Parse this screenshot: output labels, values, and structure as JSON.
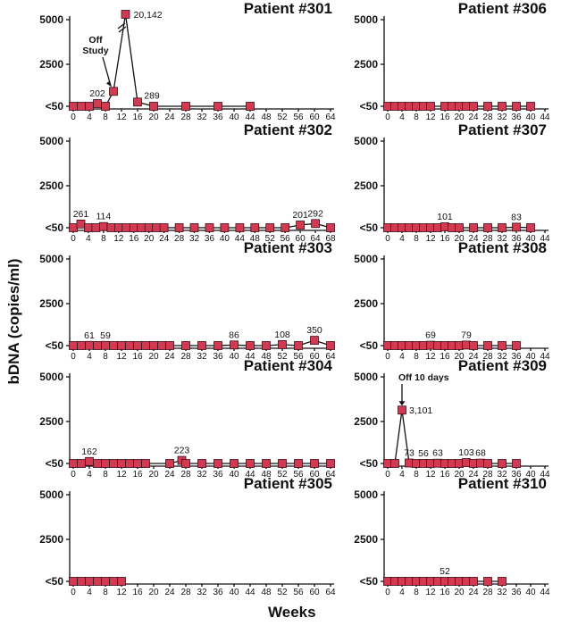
{
  "figure": {
    "ylabel": "bDNA (copies/ml)",
    "xlabel": "Weeks"
  },
  "chart_data": [
    {
      "type": "line",
      "title": "Patient #301",
      "y_tick_labels": [
        "5000",
        "2500",
        "<50"
      ],
      "x_tick_labels": [
        "0",
        "4",
        "8",
        "12",
        "16",
        "20",
        "24",
        "28",
        "32",
        "36",
        "40",
        "44",
        "48",
        "52",
        "56",
        "60",
        "64"
      ],
      "xlim": [
        0,
        64
      ],
      "ylim": [
        50,
        5000
      ],
      "y_axis_break": true,
      "points": [
        [
          0,
          50
        ],
        [
          2,
          50
        ],
        [
          4,
          50
        ],
        [
          6,
          202
        ],
        [
          8,
          50
        ],
        [
          10,
          900
        ],
        [
          13,
          20142
        ],
        [
          16,
          289
        ],
        [
          20,
          50
        ],
        [
          28,
          50
        ],
        [
          36,
          50
        ],
        [
          44,
          50
        ]
      ],
      "data_labels": [
        {
          "x": 6,
          "text": "202"
        },
        {
          "x": 13,
          "text": "20,142"
        },
        {
          "x": 16,
          "text": "289"
        }
      ],
      "annotations": [
        {
          "x": 10,
          "lines": [
            "Off",
            "Study"
          ]
        }
      ]
    },
    {
      "type": "line",
      "title": "Patient #306",
      "y_tick_labels": [
        "5000",
        "2500",
        "<50"
      ],
      "x_tick_labels": [
        "0",
        "4",
        "8",
        "12",
        "16",
        "20",
        "24",
        "28",
        "32",
        "36",
        "40",
        "44"
      ],
      "xlim": [
        0,
        44
      ],
      "ylim": [
        50,
        5000
      ],
      "points": [
        [
          0,
          50
        ],
        [
          2,
          50
        ],
        [
          4,
          50
        ],
        [
          6,
          50
        ],
        [
          8,
          50
        ],
        [
          10,
          50
        ],
        [
          12,
          50
        ],
        [
          16,
          50
        ],
        [
          18,
          50
        ],
        [
          20,
          50
        ],
        [
          22,
          50
        ],
        [
          24,
          50
        ],
        [
          28,
          50
        ],
        [
          32,
          50
        ],
        [
          36,
          50
        ],
        [
          40,
          50
        ]
      ],
      "data_labels": []
    },
    {
      "type": "line",
      "title": "Patient #302",
      "y_tick_labels": [
        "5000",
        "2500",
        "<50"
      ],
      "x_tick_labels": [
        "0",
        "4",
        "8",
        "12",
        "16",
        "20",
        "24",
        "28",
        "32",
        "36",
        "40",
        "44",
        "48",
        "52",
        "56",
        "60",
        "64",
        "68"
      ],
      "xlim": [
        0,
        68
      ],
      "ylim": [
        50,
        5000
      ],
      "points": [
        [
          0,
          50
        ],
        [
          2,
          261
        ],
        [
          4,
          50
        ],
        [
          6,
          50
        ],
        [
          8,
          114
        ],
        [
          10,
          50
        ],
        [
          12,
          50
        ],
        [
          14,
          50
        ],
        [
          16,
          50
        ],
        [
          18,
          50
        ],
        [
          20,
          50
        ],
        [
          22,
          50
        ],
        [
          24,
          50
        ],
        [
          28,
          50
        ],
        [
          32,
          50
        ],
        [
          36,
          50
        ],
        [
          40,
          50
        ],
        [
          44,
          50
        ],
        [
          48,
          50
        ],
        [
          52,
          50
        ],
        [
          56,
          50
        ],
        [
          60,
          201
        ],
        [
          64,
          292
        ],
        [
          68,
          50
        ]
      ],
      "data_labels": [
        {
          "x": 2,
          "text": "261"
        },
        {
          "x": 8,
          "text": "114"
        },
        {
          "x": 60,
          "text": "201"
        },
        {
          "x": 64,
          "text": "292"
        }
      ]
    },
    {
      "type": "line",
      "title": "Patient #307",
      "y_tick_labels": [
        "5000",
        "2500",
        "<50"
      ],
      "x_tick_labels": [
        "0",
        "4",
        "8",
        "12",
        "16",
        "20",
        "24",
        "28",
        "32",
        "36",
        "40",
        "44"
      ],
      "xlim": [
        0,
        44
      ],
      "ylim": [
        50,
        5000
      ],
      "points": [
        [
          0,
          50
        ],
        [
          2,
          50
        ],
        [
          4,
          50
        ],
        [
          6,
          50
        ],
        [
          8,
          50
        ],
        [
          10,
          50
        ],
        [
          12,
          50
        ],
        [
          14,
          50
        ],
        [
          16,
          101
        ],
        [
          18,
          50
        ],
        [
          20,
          50
        ],
        [
          24,
          50
        ],
        [
          28,
          50
        ],
        [
          32,
          50
        ],
        [
          36,
          83
        ],
        [
          40,
          50
        ]
      ],
      "data_labels": [
        {
          "x": 16,
          "text": "101"
        },
        {
          "x": 36,
          "text": "83"
        }
      ]
    },
    {
      "type": "line",
      "title": "Patient #303",
      "y_tick_labels": [
        "5000",
        "2500",
        "<50"
      ],
      "x_tick_labels": [
        "0",
        "4",
        "8",
        "12",
        "16",
        "20",
        "24",
        "28",
        "32",
        "36",
        "40",
        "44",
        "48",
        "52",
        "56",
        "60",
        "64"
      ],
      "xlim": [
        0,
        64
      ],
      "ylim": [
        50,
        5000
      ],
      "points": [
        [
          0,
          50
        ],
        [
          2,
          50
        ],
        [
          4,
          61
        ],
        [
          6,
          50
        ],
        [
          8,
          59
        ],
        [
          10,
          50
        ],
        [
          12,
          50
        ],
        [
          14,
          50
        ],
        [
          16,
          50
        ],
        [
          18,
          50
        ],
        [
          20,
          50
        ],
        [
          22,
          50
        ],
        [
          24,
          50
        ],
        [
          28,
          50
        ],
        [
          32,
          50
        ],
        [
          36,
          50
        ],
        [
          40,
          86
        ],
        [
          44,
          50
        ],
        [
          48,
          50
        ],
        [
          52,
          108
        ],
        [
          56,
          50
        ],
        [
          60,
          350
        ],
        [
          64,
          50
        ]
      ],
      "data_labels": [
        {
          "x": 4,
          "text": "61"
        },
        {
          "x": 8,
          "text": "59"
        },
        {
          "x": 40,
          "text": "86"
        },
        {
          "x": 52,
          "text": "108"
        },
        {
          "x": 60,
          "text": "350"
        }
      ]
    },
    {
      "type": "line",
      "title": "Patient #308",
      "y_tick_labels": [
        "5000",
        "2500",
        "<50"
      ],
      "x_tick_labels": [
        "0",
        "4",
        "8",
        "12",
        "16",
        "20",
        "24",
        "28",
        "32",
        "36",
        "40",
        "44"
      ],
      "xlim": [
        0,
        44
      ],
      "ylim": [
        50,
        5000
      ],
      "points": [
        [
          0,
          50
        ],
        [
          2,
          50
        ],
        [
          4,
          50
        ],
        [
          6,
          50
        ],
        [
          8,
          50
        ],
        [
          10,
          50
        ],
        [
          12,
          69
        ],
        [
          14,
          50
        ],
        [
          16,
          50
        ],
        [
          18,
          50
        ],
        [
          20,
          50
        ],
        [
          22,
          79
        ],
        [
          24,
          50
        ],
        [
          28,
          50
        ],
        [
          32,
          50
        ],
        [
          36,
          50
        ]
      ],
      "data_labels": [
        {
          "x": 12,
          "text": "69"
        },
        {
          "x": 22,
          "text": "79"
        }
      ]
    },
    {
      "type": "line",
      "title": "Patient #304",
      "y_tick_labels": [
        "5000",
        "2500",
        "<50"
      ],
      "x_tick_labels": [
        "0",
        "4",
        "8",
        "12",
        "16",
        "20",
        "24",
        "28",
        "32",
        "36",
        "40",
        "44",
        "48",
        "52",
        "56",
        "60",
        "64"
      ],
      "xlim": [
        0,
        64
      ],
      "ylim": [
        50,
        5000
      ],
      "points": [
        [
          0,
          50
        ],
        [
          2,
          50
        ],
        [
          4,
          162
        ],
        [
          6,
          50
        ],
        [
          8,
          50
        ],
        [
          10,
          50
        ],
        [
          12,
          50
        ],
        [
          14,
          50
        ],
        [
          16,
          50
        ],
        [
          18,
          50
        ],
        [
          24,
          50
        ],
        [
          27,
          223
        ],
        [
          28,
          50
        ],
        [
          32,
          50
        ],
        [
          36,
          50
        ],
        [
          40,
          50
        ],
        [
          44,
          50
        ],
        [
          48,
          50
        ],
        [
          52,
          50
        ],
        [
          56,
          50
        ],
        [
          60,
          50
        ],
        [
          64,
          50
        ]
      ],
      "data_labels": [
        {
          "x": 4,
          "text": "162"
        },
        {
          "x": 27,
          "text": "223"
        }
      ]
    },
    {
      "type": "line",
      "title": "Patient #309",
      "y_tick_labels": [
        "5000",
        "2500",
        "<50"
      ],
      "x_tick_labels": [
        "0",
        "4",
        "8",
        "12",
        "16",
        "20",
        "24",
        "28",
        "32",
        "36",
        "40",
        "44"
      ],
      "xlim": [
        0,
        44
      ],
      "ylim": [
        50,
        5000
      ],
      "points": [
        [
          0,
          50
        ],
        [
          2,
          50
        ],
        [
          4,
          3101
        ],
        [
          6,
          73
        ],
        [
          8,
          50
        ],
        [
          10,
          56
        ],
        [
          12,
          50
        ],
        [
          14,
          63
        ],
        [
          16,
          50
        ],
        [
          18,
          50
        ],
        [
          20,
          50
        ],
        [
          22,
          103
        ],
        [
          24,
          50
        ],
        [
          26,
          68
        ],
        [
          28,
          50
        ],
        [
          32,
          50
        ],
        [
          36,
          50
        ]
      ],
      "data_labels": [
        {
          "x": 4,
          "text": "3,101"
        },
        {
          "x": 6,
          "text": "73"
        },
        {
          "x": 10,
          "text": "56"
        },
        {
          "x": 14,
          "text": "63"
        },
        {
          "x": 22,
          "text": "103"
        },
        {
          "x": 26,
          "text": "68"
        }
      ],
      "annotations": [
        {
          "x": 4,
          "lines": [
            "Off 10 days"
          ]
        }
      ]
    },
    {
      "type": "line",
      "title": "Patient #305",
      "y_tick_labels": [
        "5000",
        "2500",
        "<50"
      ],
      "x_tick_labels": [
        "0",
        "4",
        "8",
        "12",
        "16",
        "20",
        "24",
        "28",
        "32",
        "36",
        "40",
        "44",
        "48",
        "52",
        "56",
        "60",
        "64"
      ],
      "xlim": [
        0,
        64
      ],
      "ylim": [
        50,
        5000
      ],
      "points": [
        [
          0,
          50
        ],
        [
          2,
          50
        ],
        [
          4,
          50
        ],
        [
          6,
          50
        ],
        [
          8,
          50
        ],
        [
          10,
          50
        ],
        [
          12,
          50
        ]
      ],
      "data_labels": []
    },
    {
      "type": "line",
      "title": "Patient #310",
      "y_tick_labels": [
        "5000",
        "2500",
        "<50"
      ],
      "x_tick_labels": [
        "0",
        "4",
        "8",
        "12",
        "16",
        "20",
        "24",
        "28",
        "32",
        "36",
        "40",
        "44"
      ],
      "xlim": [
        0,
        44
      ],
      "ylim": [
        50,
        5000
      ],
      "points": [
        [
          0,
          50
        ],
        [
          2,
          50
        ],
        [
          4,
          50
        ],
        [
          6,
          50
        ],
        [
          8,
          50
        ],
        [
          10,
          50
        ],
        [
          12,
          50
        ],
        [
          14,
          50
        ],
        [
          16,
          52
        ],
        [
          18,
          50
        ],
        [
          20,
          50
        ],
        [
          22,
          50
        ],
        [
          24,
          50
        ],
        [
          28,
          50
        ],
        [
          32,
          50
        ]
      ],
      "data_labels": [
        {
          "x": 16,
          "text": "52"
        }
      ]
    }
  ]
}
